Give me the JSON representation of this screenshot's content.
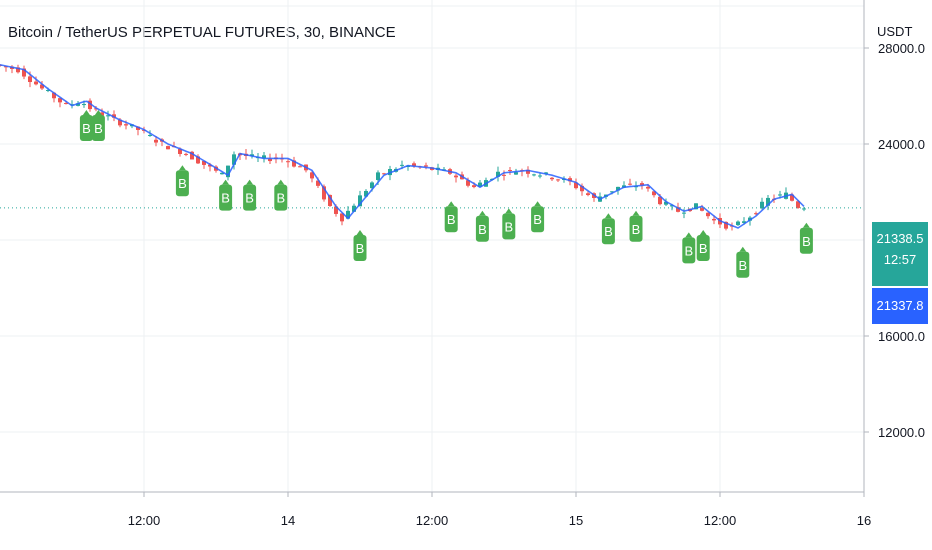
{
  "header": {
    "title": "Bitcoin / TetherUS PERPETUAL FUTURES, 30, BINANCE",
    "currency": "USDT"
  },
  "badges": {
    "last_price": "21338.5",
    "countdown": "12:57",
    "ma_value": "21337.8"
  },
  "colors": {
    "up": "#26a69a",
    "down": "#ef5350",
    "ma": "#2962ff",
    "signal": "#4caf50",
    "grid": "#eef0f3",
    "text": "#131722"
  },
  "chart_data": {
    "type": "candlestick",
    "title": "Bitcoin / TetherUS PERPETUAL FUTURES, 30, BINANCE",
    "ylabel": "USDT",
    "ylim": [
      9500,
      30000
    ],
    "y_ticks": [
      12000,
      16000,
      24000,
      28000
    ],
    "y_tick_labels": [
      "12000.0",
      "16000.0",
      "24000.0",
      "28000.0"
    ],
    "x_ticks": [
      12,
      24,
      36,
      48,
      60,
      72,
      84
    ],
    "x_tick_labels": [
      "12:00",
      "14",
      "12:00",
      "15",
      "12:00",
      "16"
    ],
    "x_tick_label_slots": [
      12,
      24,
      36,
      48,
      60,
      72
    ],
    "x_range": [
      0,
      72
    ],
    "grid": true,
    "last_price": 21338.5,
    "path": [
      [
        0,
        27300
      ],
      [
        2,
        27100
      ],
      [
        4,
        26300
      ],
      [
        6,
        25600
      ],
      [
        7.2,
        25800
      ],
      [
        8,
        25500
      ],
      [
        10,
        25000
      ],
      [
        12,
        24600
      ],
      [
        14,
        24000
      ],
      [
        16,
        23600
      ],
      [
        18,
        23000
      ],
      [
        19,
        22700
      ],
      [
        20,
        23600
      ],
      [
        22,
        23400
      ],
      [
        24,
        23400
      ],
      [
        26,
        22900
      ],
      [
        28,
        21400
      ],
      [
        29,
        20900
      ],
      [
        30.5,
        21800
      ],
      [
        32,
        22700
      ],
      [
        34,
        23100
      ],
      [
        36,
        23000
      ],
      [
        38,
        22800
      ],
      [
        40,
        22200
      ],
      [
        42,
        22800
      ],
      [
        44,
        22900
      ],
      [
        46,
        22700
      ],
      [
        48,
        22400
      ],
      [
        50,
        21700
      ],
      [
        52,
        22200
      ],
      [
        54,
        22300
      ],
      [
        55.5,
        21600
      ],
      [
        57,
        21200
      ],
      [
        58.5,
        21400
      ],
      [
        60,
        20800
      ],
      [
        61.5,
        20500
      ],
      [
        63,
        21000
      ],
      [
        64.5,
        21700
      ],
      [
        66,
        21900
      ],
      [
        67,
        21400
      ]
    ],
    "signals": [
      {
        "x": 7.2,
        "price": 25000,
        "label": "B"
      },
      {
        "x": 8.2,
        "price": 25000,
        "label": "B"
      },
      {
        "x": 15.2,
        "price": 22700,
        "label": "B"
      },
      {
        "x": 18.8,
        "price": 22100,
        "label": "B"
      },
      {
        "x": 20.8,
        "price": 22100,
        "label": "B"
      },
      {
        "x": 23.4,
        "price": 22100,
        "label": "B"
      },
      {
        "x": 30.0,
        "price": 20000,
        "label": "B"
      },
      {
        "x": 37.6,
        "price": 21200,
        "label": "B"
      },
      {
        "x": 40.2,
        "price": 20800,
        "label": "B"
      },
      {
        "x": 42.4,
        "price": 20900,
        "label": "B"
      },
      {
        "x": 44.8,
        "price": 21200,
        "label": "B"
      },
      {
        "x": 50.7,
        "price": 20700,
        "label": "B"
      },
      {
        "x": 53.0,
        "price": 20800,
        "label": "B"
      },
      {
        "x": 57.4,
        "price": 19900,
        "label": "B"
      },
      {
        "x": 58.6,
        "price": 20000,
        "label": "B"
      },
      {
        "x": 61.9,
        "price": 19300,
        "label": "B"
      },
      {
        "x": 67.2,
        "price": 20300,
        "label": "B"
      }
    ]
  }
}
